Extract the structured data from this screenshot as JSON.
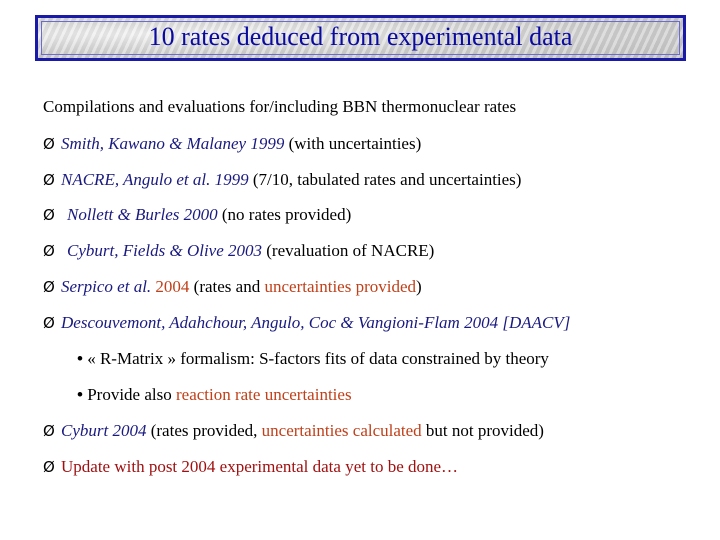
{
  "title": "10 rates deduced from experimental data",
  "intro": "Compilations and evaluations for/including BBN thermonuclear rates",
  "bullet_glyph": "Ø",
  "sub_bullet_glyph": "•",
  "items": {
    "smith": {
      "authors": "Smith, Kawano & Malaney 1999",
      "note": " (with uncertainties)"
    },
    "nacre": {
      "authors": "NACRE, Angulo et al. 1999",
      "note": " (7/10, tabulated rates and uncertainties)"
    },
    "nollett": {
      "authors": "Nollett & Burles 2000",
      "note": " (no rates provided)"
    },
    "cyburt2003": {
      "authors": "Cyburt, Fields & Olive 2003",
      "note": " (revaluation of NACRE)"
    },
    "serpico": {
      "authors": "Serpico et al.",
      "year": " 2004",
      "note_a": " (rates and ",
      "note_b": "uncertainties provided",
      "note_c": ")"
    },
    "descouvemont": {
      "authors": "Descouvemont, Adahchour, Angulo, Coc  & Vangioni-Flam 2004 [DAACV]"
    },
    "rmatrix": {
      "text": " « R-Matrix » formalism: S-factors fits of data constrained by theory"
    },
    "provide": {
      "text_a": " Provide also ",
      "text_b": "reaction rate uncertainties"
    },
    "cyburt2004": {
      "authors": "Cyburt 2004",
      "note_a": " (rates provided, ",
      "note_b": "uncertainties calculated",
      "note_c": " but not provided)"
    },
    "update": {
      "text": "Update with post 2004 experimental data yet to be done…"
    }
  },
  "colors": {
    "title": "#0a0aa0",
    "border": "#1a1aa8",
    "italic": "#1a1a80",
    "highlight": "#c0401a",
    "update": "#a01010"
  }
}
